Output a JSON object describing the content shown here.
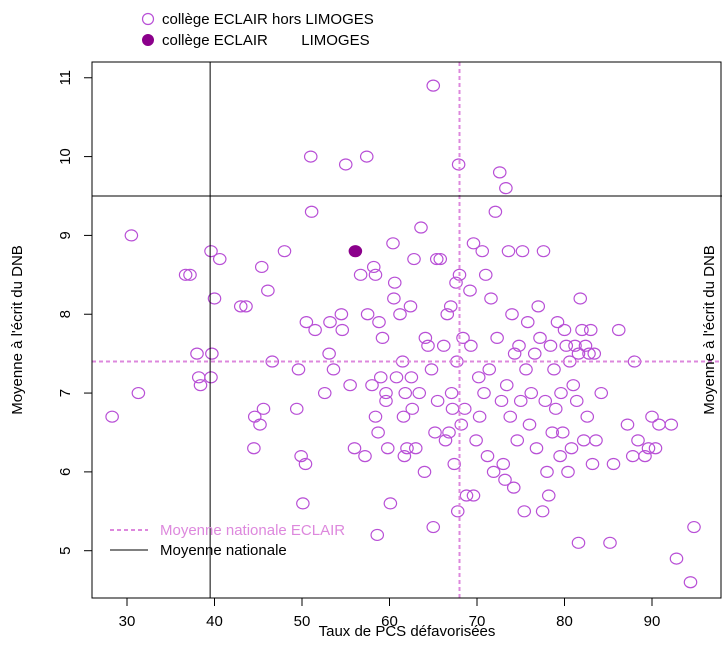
{
  "chart_data": {
    "type": "scatter",
    "title": "",
    "xlabel": "Taux de PCS défavorisées",
    "ylabel": "Moyenne à l'écrit du DNB",
    "ylabel_right": "Moyenne à l'écrit du DNB",
    "xlim": [
      26,
      98
    ],
    "ylim": [
      4.4,
      11.2
    ],
    "x_ticks": [
      30,
      40,
      50,
      60,
      70,
      80,
      90
    ],
    "y_ticks": [
      5,
      6,
      7,
      8,
      9,
      10,
      11
    ],
    "grid": false,
    "colors": {
      "series": "#b84fd6",
      "highlight": "#8b008b",
      "national_eclair_line": "#dd88dd",
      "national_line": "#000000"
    },
    "top_legend": [
      {
        "label": "collège ECLAIR hors LIMOGES",
        "marker": "open-circle"
      },
      {
        "label": "collège ECLAIR        LIMOGES",
        "marker": "filled-circle"
      }
    ],
    "bottom_legend": [
      {
        "label": "Moyenne nationale ECLAIR",
        "style": "dashed"
      },
      {
        "label": "Moyenne nationale",
        "style": "solid"
      }
    ],
    "reference_lines": {
      "national_eclair": {
        "x": 68,
        "y": 7.4
      },
      "national": {
        "x": 39.5,
        "y": 9.5
      }
    },
    "series": [
      {
        "name": "collège ECLAIR hors LIMOGES",
        "points": [
          [
            28.3,
            6.7
          ],
          [
            30.5,
            9.0
          ],
          [
            31.3,
            7.0
          ],
          [
            36.7,
            8.5
          ],
          [
            37.2,
            8.5
          ],
          [
            38.0,
            7.5
          ],
          [
            38.2,
            7.2
          ],
          [
            38.4,
            7.1
          ],
          [
            39.6,
            8.8
          ],
          [
            39.7,
            7.5
          ],
          [
            39.6,
            7.2
          ],
          [
            40.0,
            8.2
          ],
          [
            40.6,
            8.7
          ],
          [
            43.0,
            8.1
          ],
          [
            43.6,
            8.1
          ],
          [
            44.5,
            6.3
          ],
          [
            44.6,
            6.7
          ],
          [
            45.2,
            6.6
          ],
          [
            45.4,
            8.6
          ],
          [
            45.6,
            6.8
          ],
          [
            46.1,
            8.3
          ],
          [
            46.6,
            7.4
          ],
          [
            48.0,
            8.8
          ],
          [
            49.4,
            6.8
          ],
          [
            49.6,
            7.3
          ],
          [
            49.9,
            6.2
          ],
          [
            50.1,
            5.6
          ],
          [
            50.4,
            6.1
          ],
          [
            50.5,
            7.9
          ],
          [
            51.0,
            10.0
          ],
          [
            51.1,
            9.3
          ],
          [
            51.5,
            7.8
          ],
          [
            52.6,
            7.0
          ],
          [
            53.1,
            7.5
          ],
          [
            53.2,
            7.9
          ],
          [
            53.6,
            7.3
          ],
          [
            54.5,
            8.0
          ],
          [
            54.6,
            7.8
          ],
          [
            55.0,
            9.9
          ],
          [
            55.5,
            7.1
          ],
          [
            56.0,
            6.3
          ],
          [
            56.7,
            8.5
          ],
          [
            57.2,
            6.2
          ],
          [
            57.4,
            10.0
          ],
          [
            57.5,
            8.0
          ],
          [
            58.0,
            7.1
          ],
          [
            58.2,
            8.6
          ],
          [
            58.4,
            8.5
          ],
          [
            58.4,
            6.7
          ],
          [
            58.6,
            5.2
          ],
          [
            58.7,
            6.5
          ],
          [
            58.8,
            7.9
          ],
          [
            59.0,
            7.2
          ],
          [
            59.2,
            7.7
          ],
          [
            59.6,
            7.0
          ],
          [
            59.6,
            6.9
          ],
          [
            59.8,
            6.3
          ],
          [
            60.1,
            5.6
          ],
          [
            60.4,
            8.9
          ],
          [
            60.5,
            8.2
          ],
          [
            60.6,
            8.4
          ],
          [
            60.8,
            7.2
          ],
          [
            61.2,
            8.0
          ],
          [
            61.5,
            7.4
          ],
          [
            61.6,
            6.7
          ],
          [
            61.7,
            6.2
          ],
          [
            61.8,
            7.0
          ],
          [
            62.0,
            6.3
          ],
          [
            62.4,
            8.1
          ],
          [
            62.5,
            7.2
          ],
          [
            62.6,
            6.8
          ],
          [
            62.8,
            8.7
          ],
          [
            63.0,
            6.3
          ],
          [
            63.4,
            7.0
          ],
          [
            63.6,
            9.1
          ],
          [
            64.0,
            6.0
          ],
          [
            64.1,
            7.7
          ],
          [
            64.4,
            7.6
          ],
          [
            64.8,
            7.3
          ],
          [
            65.0,
            10.9
          ],
          [
            65.0,
            5.3
          ],
          [
            65.2,
            6.5
          ],
          [
            65.4,
            8.7
          ],
          [
            65.5,
            6.9
          ],
          [
            65.8,
            8.7
          ],
          [
            66.2,
            7.6
          ],
          [
            66.4,
            6.4
          ],
          [
            66.6,
            8.0
          ],
          [
            66.8,
            6.5
          ],
          [
            67.0,
            8.1
          ],
          [
            67.1,
            7.0
          ],
          [
            67.2,
            6.8
          ],
          [
            67.4,
            6.1
          ],
          [
            67.6,
            8.4
          ],
          [
            67.7,
            7.4
          ],
          [
            67.9,
            9.9
          ],
          [
            67.8,
            5.5
          ],
          [
            68.0,
            8.5
          ],
          [
            68.2,
            6.6
          ],
          [
            68.4,
            7.7
          ],
          [
            68.6,
            6.8
          ],
          [
            68.8,
            5.7
          ],
          [
            69.2,
            8.3
          ],
          [
            69.3,
            7.6
          ],
          [
            69.6,
            8.9
          ],
          [
            69.6,
            5.7
          ],
          [
            69.9,
            6.4
          ],
          [
            70.2,
            7.2
          ],
          [
            70.3,
            6.7
          ],
          [
            70.6,
            8.8
          ],
          [
            70.8,
            7.0
          ],
          [
            71.0,
            8.5
          ],
          [
            71.2,
            6.2
          ],
          [
            71.4,
            7.3
          ],
          [
            71.6,
            8.2
          ],
          [
            71.9,
            6.0
          ],
          [
            72.1,
            9.3
          ],
          [
            72.3,
            7.7
          ],
          [
            72.6,
            9.8
          ],
          [
            72.8,
            6.9
          ],
          [
            73.0,
            6.1
          ],
          [
            73.2,
            5.9
          ],
          [
            73.3,
            9.6
          ],
          [
            73.4,
            7.1
          ],
          [
            73.6,
            8.8
          ],
          [
            73.8,
            6.7
          ],
          [
            74.0,
            8.0
          ],
          [
            74.2,
            5.8
          ],
          [
            74.3,
            7.5
          ],
          [
            74.6,
            6.4
          ],
          [
            74.8,
            7.6
          ],
          [
            75.0,
            6.9
          ],
          [
            75.2,
            8.8
          ],
          [
            75.4,
            5.5
          ],
          [
            75.6,
            7.3
          ],
          [
            75.8,
            7.9
          ],
          [
            76.0,
            6.6
          ],
          [
            76.2,
            7.0
          ],
          [
            76.6,
            7.5
          ],
          [
            76.8,
            6.3
          ],
          [
            77.0,
            8.1
          ],
          [
            77.2,
            7.7
          ],
          [
            77.5,
            5.5
          ],
          [
            77.6,
            8.8
          ],
          [
            77.8,
            6.9
          ],
          [
            78.0,
            6.0
          ],
          [
            78.2,
            5.7
          ],
          [
            78.4,
            7.6
          ],
          [
            78.6,
            6.5
          ],
          [
            78.8,
            7.3
          ],
          [
            79.0,
            6.8
          ],
          [
            79.2,
            7.9
          ],
          [
            79.5,
            6.2
          ],
          [
            79.6,
            7.0
          ],
          [
            79.8,
            6.5
          ],
          [
            80.0,
            7.8
          ],
          [
            80.2,
            7.6
          ],
          [
            80.4,
            6.0
          ],
          [
            80.6,
            7.4
          ],
          [
            80.8,
            6.3
          ],
          [
            81.0,
            7.1
          ],
          [
            81.2,
            7.6
          ],
          [
            81.4,
            6.9
          ],
          [
            81.6,
            5.1
          ],
          [
            81.6,
            7.5
          ],
          [
            81.8,
            8.2
          ],
          [
            82.0,
            7.8
          ],
          [
            82.2,
            6.4
          ],
          [
            82.4,
            7.6
          ],
          [
            82.6,
            6.7
          ],
          [
            82.8,
            7.5
          ],
          [
            83.0,
            7.8
          ],
          [
            83.2,
            6.1
          ],
          [
            83.4,
            7.5
          ],
          [
            83.6,
            6.4
          ],
          [
            84.2,
            7.0
          ],
          [
            85.2,
            5.1
          ],
          [
            85.6,
            6.1
          ],
          [
            86.2,
            7.8
          ],
          [
            87.2,
            6.6
          ],
          [
            87.8,
            6.2
          ],
          [
            88.0,
            7.4
          ],
          [
            88.4,
            6.4
          ],
          [
            89.2,
            6.2
          ],
          [
            89.6,
            6.3
          ],
          [
            90.0,
            6.7
          ],
          [
            90.4,
            6.3
          ],
          [
            90.8,
            6.6
          ],
          [
            92.2,
            6.6
          ],
          [
            92.8,
            4.9
          ],
          [
            94.4,
            4.6
          ],
          [
            94.8,
            5.3
          ]
        ]
      },
      {
        "name": "collège ECLAIR        LIMOGES",
        "points": [
          [
            56.1,
            8.8
          ]
        ]
      }
    ]
  }
}
